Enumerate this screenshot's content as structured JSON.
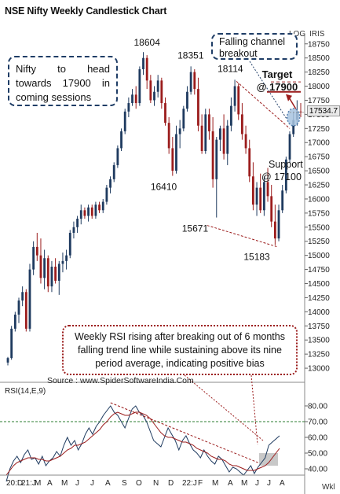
{
  "title": "NSE Nifty Weekly Candlestick Chart",
  "header_labels": {
    "log": "LOG",
    "iris": "IRIS",
    "wkl": "Wkl"
  },
  "callouts": {
    "nifty_view": "Nifty to head towards 17900 in coming sessions",
    "falling_channel": "Falling channel breakout",
    "rsi_note": "Weekly RSI rising after breaking out of 6 months falling trend line while sustaining above its nine period average, indicating positive bias"
  },
  "annotations": {
    "target_line1": "Target",
    "target_line2": "@ 17900",
    "support_line1": "Support",
    "support_line2": "@ 17100"
  },
  "source": "Source : www.SpiderSoftwareIndia.Com",
  "rsi_label": "RSI(14,E,9)",
  "current_price": "17534.7",
  "colors": {
    "up": "#1e3a5f",
    "down": "#9b1c1c",
    "rsi_line": "#1e3a5f",
    "rsi_avg": "#9b1c1c",
    "level70": "#2e7d32",
    "highlight": "#a8c4e0"
  },
  "chart_data": [
    {
      "type": "candlestick",
      "title": "NSE Nifty Weekly Candlestick Chart",
      "ylim": [
        12750,
        18900
      ],
      "y_ticks": [
        13000,
        13250,
        13500,
        13750,
        14000,
        14250,
        14500,
        14750,
        15000,
        15250,
        15500,
        15750,
        16000,
        16250,
        16500,
        16750,
        17000,
        17250,
        17500,
        17750,
        18000,
        18250,
        18500,
        18750
      ],
      "x_tick_labels": [
        "20:D",
        "21:J",
        "M",
        "A",
        "M",
        "J",
        "J",
        "A",
        "S",
        "O",
        "N",
        "D",
        "22:J",
        "F",
        "M",
        "A",
        "M",
        "J",
        "J",
        "A"
      ],
      "candles": [
        [
          13100,
          13200,
          13050,
          13180
        ],
        [
          13180,
          13750,
          13150,
          13700
        ],
        [
          13700,
          14000,
          13650,
          13950
        ],
        [
          13950,
          14250,
          13800,
          14200
        ],
        [
          14200,
          14450,
          14100,
          14350
        ],
        [
          14350,
          14400,
          13650,
          13700
        ],
        [
          13700,
          14850,
          13650,
          14750
        ],
        [
          14750,
          15250,
          14650,
          15150
        ],
        [
          15150,
          15400,
          14900,
          15000
        ],
        [
          15000,
          15300,
          14500,
          14600
        ],
        [
          14600,
          15100,
          14400,
          14950
        ],
        [
          14950,
          15000,
          14350,
          14450
        ],
        [
          14450,
          14900,
          14350,
          14800
        ],
        [
          14800,
          14950,
          14500,
          14550
        ],
        [
          14550,
          14900,
          14300,
          14850
        ],
        [
          14850,
          15050,
          14700,
          14900
        ],
        [
          14900,
          15100,
          14750,
          15000
        ],
        [
          15000,
          15450,
          14950,
          15400
        ],
        [
          15400,
          15600,
          15300,
          15500
        ],
        [
          15500,
          15700,
          15400,
          15650
        ],
        [
          15650,
          15900,
          15550,
          15800
        ],
        [
          15800,
          15850,
          15650,
          15700
        ],
        [
          15700,
          15900,
          15600,
          15850
        ],
        [
          15850,
          15900,
          15650,
          15700
        ],
        [
          15700,
          15950,
          15650,
          15900
        ],
        [
          15900,
          15950,
          15750,
          15800
        ],
        [
          15800,
          16000,
          15750,
          15950
        ],
        [
          15950,
          16250,
          15900,
          16200
        ],
        [
          16200,
          16400,
          16100,
          16350
        ],
        [
          16350,
          16650,
          16300,
          16600
        ],
        [
          16600,
          16950,
          16550,
          16900
        ],
        [
          16900,
          17250,
          16850,
          17200
        ],
        [
          17200,
          17600,
          17150,
          17550
        ],
        [
          17550,
          17800,
          17450,
          17700
        ],
        [
          17700,
          17950,
          17650,
          17850
        ],
        [
          17850,
          18000,
          17600,
          17700
        ],
        [
          17700,
          18350,
          17650,
          18300
        ],
        [
          18300,
          18604,
          18200,
          18500
        ],
        [
          18500,
          18550,
          17950,
          18100
        ],
        [
          18100,
          18200,
          17700,
          17750
        ],
        [
          17750,
          18000,
          17650,
          17900
        ],
        [
          17900,
          18200,
          17800,
          18100
        ],
        [
          18100,
          18150,
          17600,
          17700
        ],
        [
          17700,
          17800,
          17300,
          17350
        ],
        [
          17350,
          17450,
          16800,
          16900
        ],
        [
          16900,
          17100,
          16410,
          16500
        ],
        [
          16500,
          17300,
          16450,
          17150
        ],
        [
          17150,
          17400,
          16900,
          17250
        ],
        [
          17250,
          17650,
          17200,
          17600
        ],
        [
          17600,
          18000,
          17550,
          17900
        ],
        [
          17900,
          18351,
          17850,
          18250
        ],
        [
          18250,
          18300,
          17850,
          17950
        ],
        [
          17950,
          18150,
          17200,
          17300
        ],
        [
          17300,
          17500,
          16800,
          16850
        ],
        [
          16850,
          17600,
          16800,
          17500
        ],
        [
          17500,
          17600,
          17050,
          17200
        ],
        [
          17200,
          17450,
          16200,
          16350
        ],
        [
          16350,
          17100,
          15671,
          17050
        ],
        [
          17050,
          17300,
          16850,
          17250
        ],
        [
          17250,
          17500,
          16700,
          16800
        ],
        [
          16800,
          17400,
          16600,
          17300
        ],
        [
          17300,
          17800,
          17200,
          17650
        ],
        [
          17650,
          18114,
          17550,
          18000
        ],
        [
          18000,
          18050,
          17400,
          17500
        ],
        [
          17500,
          17700,
          17050,
          17150
        ],
        [
          17150,
          17300,
          16800,
          16900
        ],
        [
          16900,
          17050,
          16300,
          16400
        ],
        [
          16400,
          16650,
          15800,
          15900
        ],
        [
          15900,
          16300,
          15700,
          16200
        ],
        [
          16200,
          16450,
          15750,
          15800
        ],
        [
          15800,
          16400,
          15700,
          16300
        ],
        [
          16300,
          16550,
          15950,
          16050
        ],
        [
          16050,
          16250,
          15500,
          15600
        ],
        [
          15600,
          15900,
          15183,
          15300
        ],
        [
          15300,
          15900,
          15250,
          15800
        ],
        [
          15800,
          16250,
          15750,
          16150
        ],
        [
          16150,
          16750,
          16100,
          16700
        ],
        [
          16700,
          17200,
          16650,
          17150
        ],
        [
          17150,
          17550,
          17100,
          17400
        ],
        [
          17400,
          17750,
          17300,
          17550
        ],
        [
          17550,
          17700,
          17450,
          17534.7
        ]
      ],
      "annotations": [
        {
          "label": "18604",
          "value": 18604
        },
        {
          "label": "18351",
          "value": 18351
        },
        {
          "label": "18114",
          "value": 18114
        },
        {
          "label": "16410",
          "value": 16410
        },
        {
          "label": "15671",
          "value": 15671
        },
        {
          "label": "15183",
          "value": 15183
        }
      ],
      "target": 17900,
      "support": 17100,
      "last": 17534.7
    },
    {
      "type": "line",
      "title": "RSI(14,E,9)",
      "ylim": [
        36,
        89
      ],
      "y_ticks": [
        40,
        50,
        60,
        70,
        80
      ],
      "reference_level": 70,
      "series": [
        {
          "name": "RSI(14,E,9)",
          "values": [
            32,
            40,
            45,
            48,
            44,
            49,
            52,
            46,
            47,
            43,
            48,
            42,
            45,
            47,
            51,
            48,
            55,
            60,
            55,
            58,
            52,
            56,
            62,
            66,
            62,
            67,
            70,
            74,
            77,
            80,
            76,
            74,
            70,
            66,
            72,
            78,
            80,
            76,
            74,
            70,
            64,
            58,
            56,
            54,
            60,
            66,
            62,
            58,
            52,
            58,
            61,
            56,
            52,
            50,
            47,
            52,
            48,
            45,
            43,
            48,
            46,
            42,
            38,
            41,
            40,
            38,
            36,
            39,
            42,
            37,
            41,
            44,
            47,
            55,
            57,
            59,
            61
          ]
        },
        {
          "values": [
            36,
            39,
            42,
            44,
            45,
            46,
            47,
            47,
            47,
            46,
            46,
            45,
            45,
            46,
            47,
            48,
            50,
            52,
            53,
            55,
            55,
            56,
            57,
            59,
            61,
            63,
            65,
            68,
            70,
            73,
            75,
            76,
            75,
            74,
            74,
            75,
            76,
            76,
            75,
            74,
            72,
            69,
            66,
            63,
            61,
            60,
            60,
            59,
            58,
            57,
            57,
            56,
            55,
            53,
            52,
            51,
            50,
            48,
            47,
            46,
            46,
            45,
            43,
            42,
            42,
            41,
            40,
            39,
            39,
            39,
            40,
            41,
            42,
            44,
            47,
            50,
            53
          ]
        }
      ]
    }
  ]
}
